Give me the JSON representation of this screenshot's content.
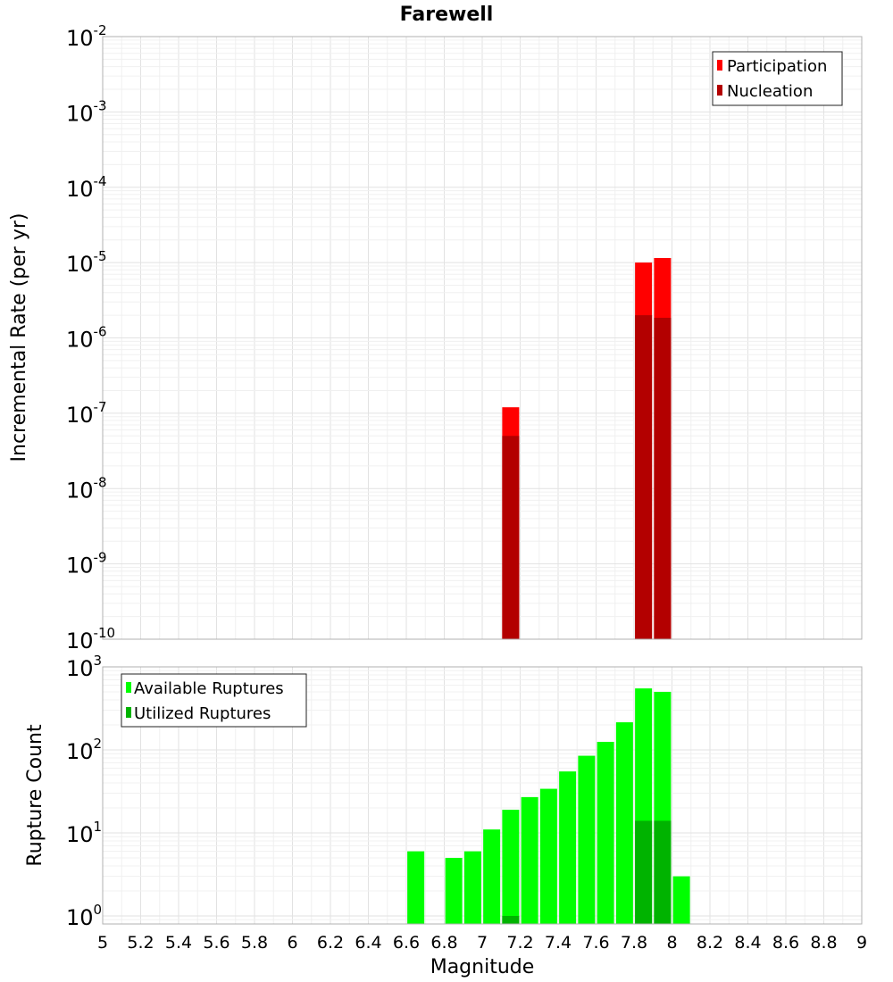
{
  "chart_data": [
    {
      "type": "bar",
      "title": "Farewell",
      "xlabel": "",
      "ylabel": "Incremental Rate (per yr)",
      "yscale": "log",
      "ylim": [
        1e-10,
        0.01
      ],
      "y_ticks": [
        {
          "base": "10",
          "exp": "-2",
          "value": 0.01
        },
        {
          "base": "10",
          "exp": "-3",
          "value": 0.001
        },
        {
          "base": "10",
          "exp": "-4",
          "value": 0.0001
        },
        {
          "base": "10",
          "exp": "-5",
          "value": 1e-05
        },
        {
          "base": "10",
          "exp": "-6",
          "value": 1e-06
        },
        {
          "base": "10",
          "exp": "-7",
          "value": 1e-07
        },
        {
          "base": "10",
          "exp": "-8",
          "value": 1e-08
        },
        {
          "base": "10",
          "exp": "-9",
          "value": 1e-09
        },
        {
          "base": "10",
          "exp": "-10",
          "value": 1e-10
        }
      ],
      "xlim": [
        5,
        9
      ],
      "grid": true,
      "legend_position": "top-right",
      "series": [
        {
          "name": "Participation",
          "color": "#ff0000",
          "x": [
            7.15,
            7.85,
            7.95
          ],
          "values": [
            1.2e-07,
            1e-05,
            1.15e-05
          ]
        },
        {
          "name": "Nucleation",
          "color": "#b30000",
          "x": [
            7.15,
            7.85,
            7.95
          ],
          "values": [
            5e-08,
            2e-06,
            1.85e-06
          ]
        }
      ]
    },
    {
      "type": "bar",
      "title": "",
      "xlabel": "Magnitude",
      "ylabel": "Rupture Count",
      "yscale": "log",
      "ylim": [
        0.8,
        1000
      ],
      "y_ticks": [
        {
          "base": "10",
          "exp": "3",
          "value": 1000
        },
        {
          "base": "10",
          "exp": "2",
          "value": 100
        },
        {
          "base": "10",
          "exp": "1",
          "value": 10
        },
        {
          "base": "10",
          "exp": "0",
          "value": 1
        }
      ],
      "xlim": [
        5,
        9
      ],
      "x_tick_labels": [
        "5",
        "5.2",
        "5.4",
        "5.6",
        "5.8",
        "6",
        "6.2",
        "6.4",
        "6.6",
        "6.8",
        "7",
        "7.2",
        "7.4",
        "7.6",
        "7.8",
        "8",
        "8.2",
        "8.4",
        "8.6",
        "8.8",
        "9"
      ],
      "grid": true,
      "legend_position": "top-left",
      "series": [
        {
          "name": "Available Ruptures",
          "color": "#00ff00",
          "x": [
            6.65,
            6.85,
            6.95,
            7.05,
            7.15,
            7.25,
            7.35,
            7.45,
            7.55,
            7.65,
            7.75,
            7.85,
            7.95,
            8.05
          ],
          "values": [
            6,
            5,
            6,
            11,
            19,
            27,
            34,
            55,
            85,
            125,
            215,
            550,
            500,
            3
          ]
        },
        {
          "name": "Utilized Ruptures",
          "color": "#00b300",
          "x": [
            7.15,
            7.85,
            7.95
          ],
          "values": [
            1,
            14,
            14
          ]
        }
      ]
    }
  ]
}
